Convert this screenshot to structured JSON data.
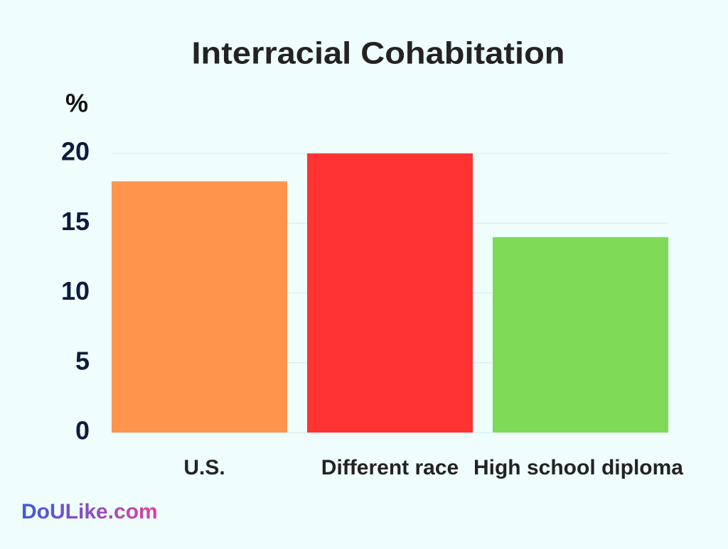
{
  "chart_data": {
    "type": "bar",
    "title": "Interracial Cohabitation",
    "y_label": "%",
    "categories": [
      "U.S.",
      "Different race",
      "High school diploma"
    ],
    "values": [
      18,
      20,
      14
    ],
    "colors": [
      "#ff944d",
      "#ff3333",
      "#7ed957"
    ],
    "ylim": [
      0,
      20
    ],
    "yticks": [
      0,
      5,
      10,
      15,
      20
    ],
    "grid": true,
    "watermark": "DoULike.com"
  }
}
